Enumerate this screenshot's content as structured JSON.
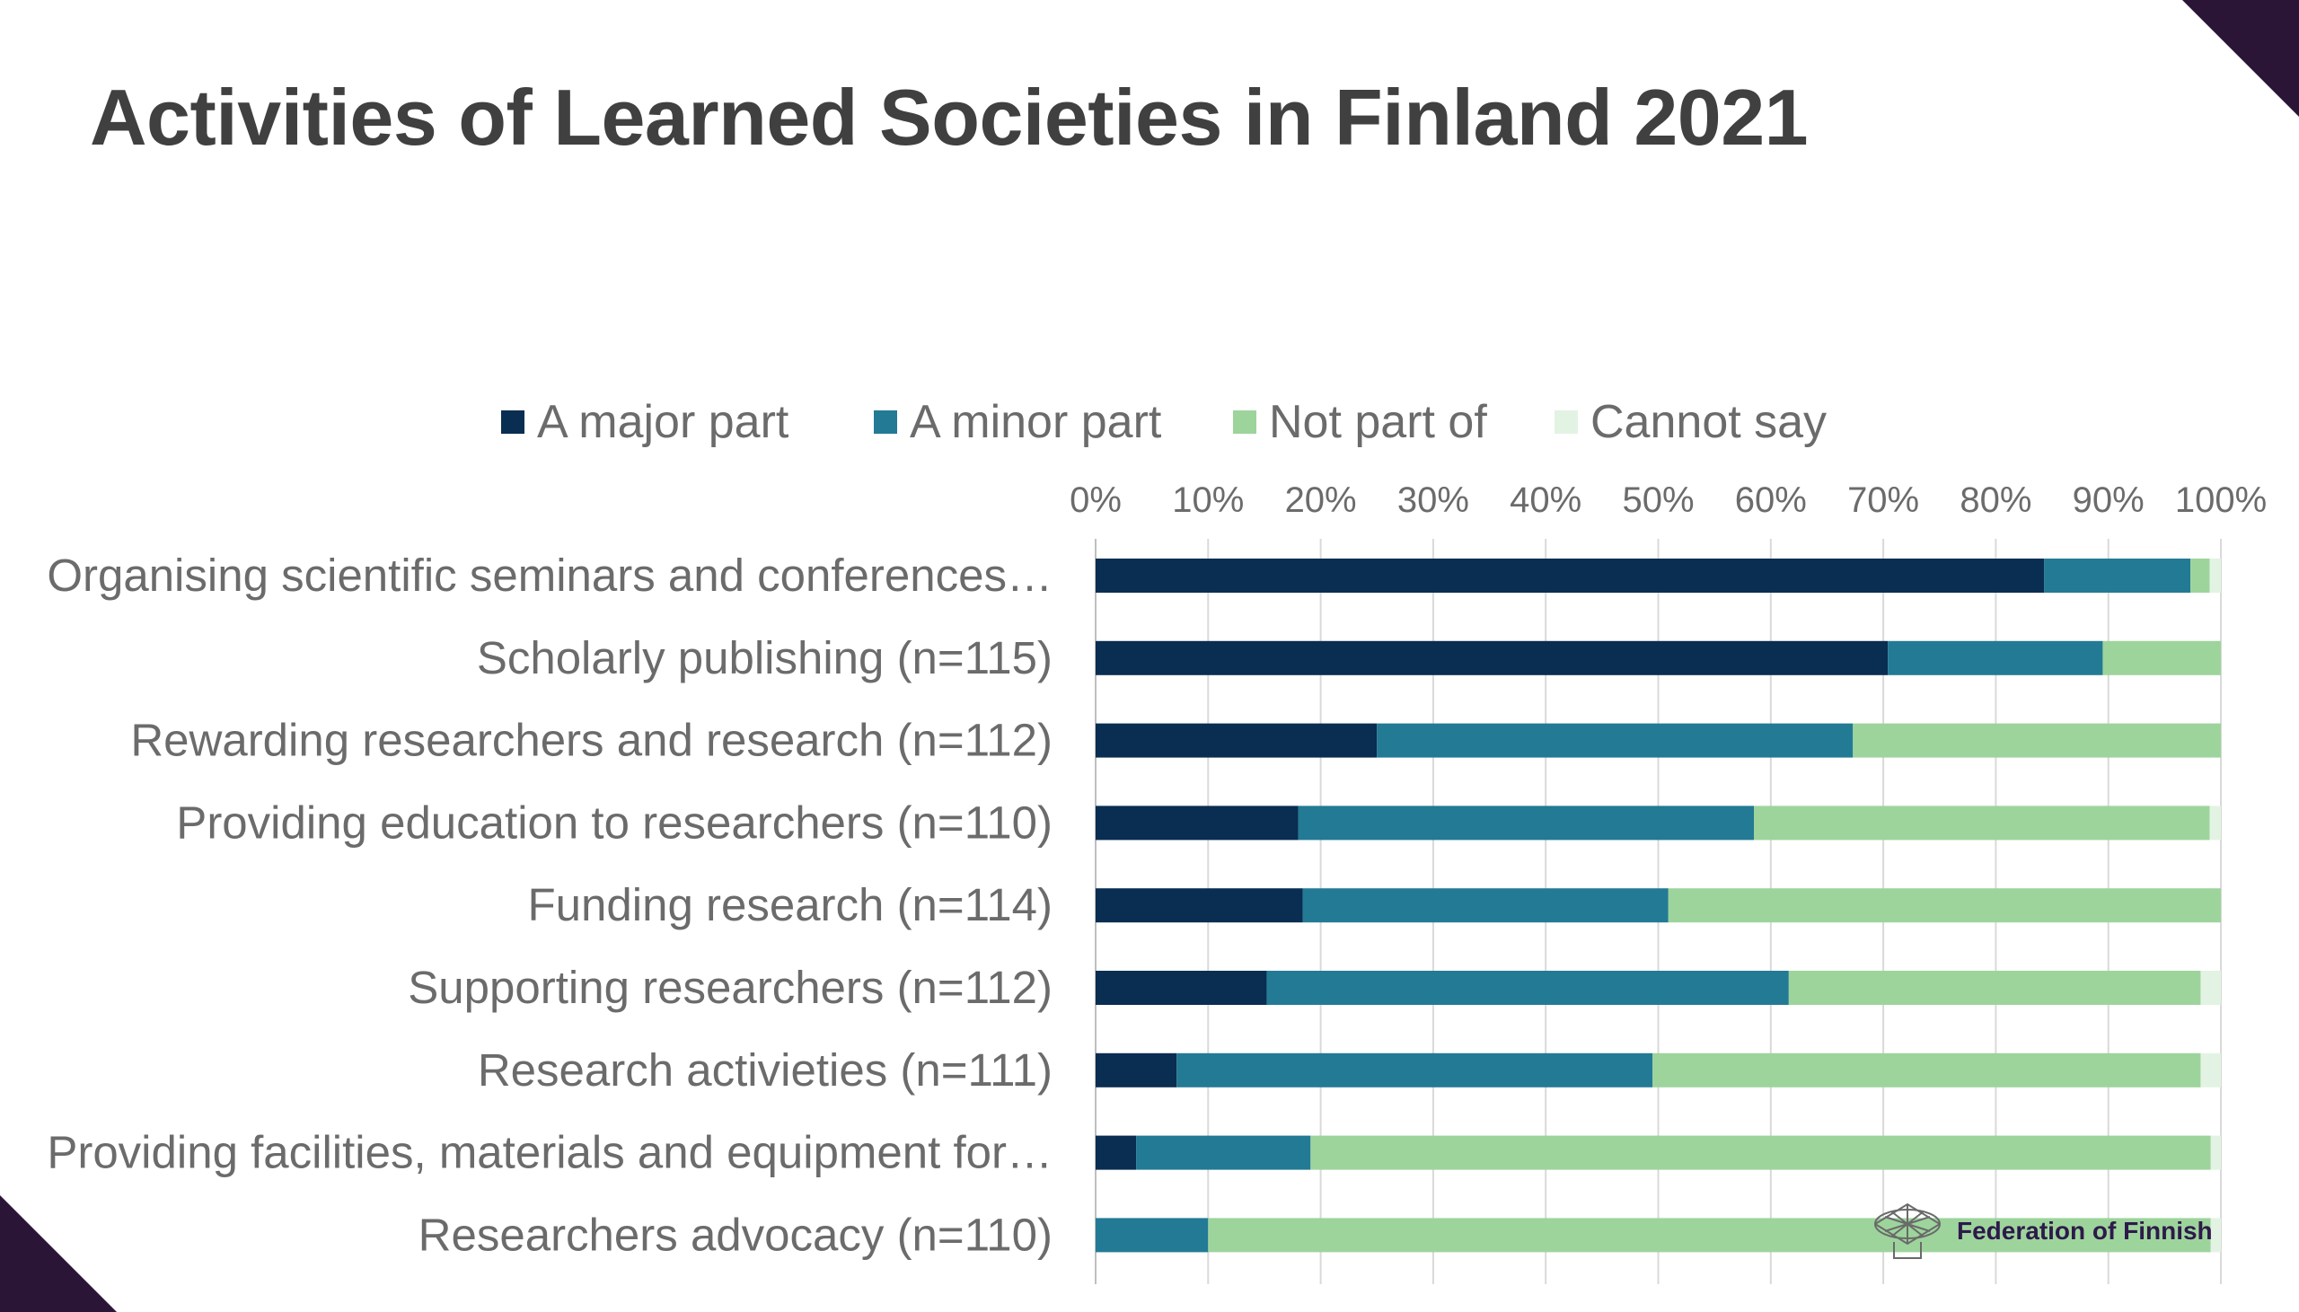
{
  "slide": {
    "title": "Activities of Learned Societies in Finland 2021",
    "logo_text": "Federation of Finnish",
    "logo_icon": "network-globe-icon",
    "corner_color": "#2a1537"
  },
  "chart_data": {
    "type": "bar",
    "orientation": "horizontal",
    "stacked": "percent",
    "title": "Activities of Learned Societies in Finland 2021",
    "xlim": [
      0,
      100
    ],
    "xticks": [
      "0%",
      "10%",
      "20%",
      "30%",
      "40%",
      "50%",
      "60%",
      "70%",
      "80%",
      "90%",
      "100%"
    ],
    "x_axis_position": "top",
    "grid": true,
    "legend_placement": "top",
    "categories": [
      "Organising scientific seminars and conferences…",
      "Scholarly publishing (n=115)",
      "Rewarding researchers and research (n=112)",
      "Providing education to researchers (n=110)",
      "Funding research  (n=114)",
      "Supporting researchers (n=112)",
      "Research activieties (n=111)",
      "Providing facilities, materials and equipment for…",
      "Researchers advocacy (n=110)"
    ],
    "series": [
      {
        "name": "A major part",
        "color": "#0a2d52",
        "values": [
          84.3,
          70.4,
          25.0,
          18.0,
          18.4,
          15.2,
          7.2,
          3.6,
          0.0
        ]
      },
      {
        "name": "A minor part",
        "color": "#237a94",
        "values": [
          13.0,
          19.1,
          42.3,
          40.5,
          32.5,
          46.4,
          42.3,
          15.5,
          10.0
        ]
      },
      {
        "name": "Not part of",
        "color": "#9dd49c",
        "values": [
          1.7,
          10.5,
          32.7,
          40.5,
          49.1,
          36.6,
          48.7,
          80.0,
          89.1
        ]
      },
      {
        "name": "Cannot say",
        "color": "#e3f3e3",
        "values": [
          1.0,
          0.0,
          0.0,
          1.0,
          0.0,
          1.8,
          1.8,
          0.9,
          0.9
        ]
      }
    ]
  }
}
